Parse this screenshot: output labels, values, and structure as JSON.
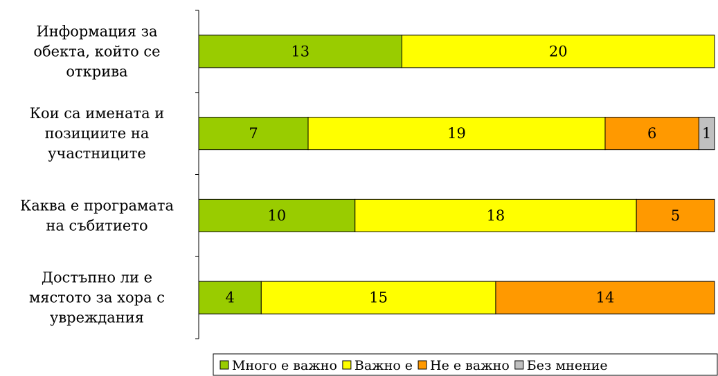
{
  "chart_data": {
    "type": "bar",
    "orientation": "horizontal",
    "stacked": "percent",
    "categories": [
      [
        "Информация за",
        "обекта, който се",
        "открива"
      ],
      [
        "Кои са имената и",
        "позициите на",
        "участниците"
      ],
      [
        "Каква е програмата",
        "на събитието"
      ],
      [
        "Достъпно ли е",
        "мястото за хора с",
        "увреждания"
      ]
    ],
    "series": [
      {
        "name": "Много е важно",
        "values": [
          13,
          7,
          10,
          4
        ],
        "color": "#99CC00"
      },
      {
        "name": "Важно е",
        "values": [
          20,
          19,
          18,
          15
        ],
        "color": "#FFFF00"
      },
      {
        "name": "Не е важно",
        "values": [
          0,
          6,
          5,
          14
        ],
        "color": "#FF9900"
      },
      {
        "name": "Без мнение",
        "values": [
          0,
          1,
          0,
          0
        ],
        "color": "#C0C0C0"
      }
    ],
    "legend_position": "bottom",
    "grid": false
  }
}
